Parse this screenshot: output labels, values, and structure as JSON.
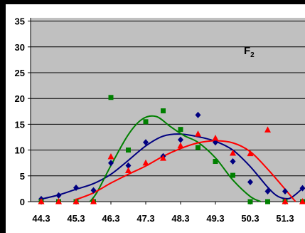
{
  "chart_data": {
    "type": "scatter",
    "title": "F",
    "title_subscript": "2",
    "xlabel": "",
    "ylabel": "",
    "xlim": [
      44.3,
      51.8
    ],
    "ylim": [
      0,
      35
    ],
    "x_ticks": [
      "44.3",
      "45.3",
      "46.3",
      "47.3",
      "48.3",
      "49.3",
      "50.3",
      "51.3"
    ],
    "y_ticks": [
      "0",
      "5",
      "10",
      "15",
      "20",
      "25",
      "30",
      "35"
    ],
    "grid": true,
    "legend": "none",
    "series": [
      {
        "color": "#000080",
        "marker": "diamond",
        "points": [
          [
            44.3,
            0.5
          ],
          [
            44.8,
            1.2
          ],
          [
            45.3,
            2.7
          ],
          [
            45.8,
            2.2
          ],
          [
            46.3,
            7.5
          ],
          [
            46.8,
            7.0
          ],
          [
            47.3,
            11.5
          ],
          [
            47.8,
            8.8
          ],
          [
            48.3,
            12.0
          ],
          [
            48.8,
            16.8
          ],
          [
            49.3,
            11.5
          ],
          [
            49.8,
            7.8
          ],
          [
            50.3,
            3.8
          ],
          [
            50.8,
            2.0
          ],
          [
            51.3,
            2.0
          ],
          [
            51.8,
            2.6
          ]
        ],
        "curve": [
          [
            44.3,
            0.5
          ],
          [
            44.8,
            1.3
          ],
          [
            45.3,
            2.4
          ],
          [
            45.8,
            3.5
          ],
          [
            46.3,
            5.3
          ],
          [
            46.8,
            8.0
          ],
          [
            47.3,
            10.8
          ],
          [
            47.8,
            12.7
          ],
          [
            48.3,
            13.1
          ],
          [
            48.8,
            12.6
          ],
          [
            49.3,
            11.7
          ],
          [
            49.8,
            10.0
          ],
          [
            50.3,
            6.8
          ],
          [
            50.8,
            2.8
          ],
          [
            51.1,
            1.0
          ],
          [
            51.4,
            0.6
          ],
          [
            51.6,
            1.4
          ],
          [
            51.8,
            2.6
          ]
        ]
      },
      {
        "color": "#008000",
        "marker": "square",
        "points": [
          [
            44.3,
            0
          ],
          [
            44.8,
            0
          ],
          [
            45.3,
            0
          ],
          [
            45.8,
            0
          ],
          [
            46.3,
            20.2
          ],
          [
            46.8,
            10.0
          ],
          [
            47.3,
            15.5
          ],
          [
            47.8,
            17.6
          ],
          [
            48.3,
            14.0
          ],
          [
            48.8,
            10.5
          ],
          [
            49.3,
            7.8
          ],
          [
            49.8,
            5.1
          ],
          [
            50.3,
            0
          ],
          [
            50.8,
            0
          ],
          [
            51.3,
            0
          ],
          [
            51.8,
            0
          ]
        ],
        "curve": [
          [
            45.7,
            0
          ],
          [
            45.9,
            1.8
          ],
          [
            46.3,
            7.0
          ],
          [
            46.8,
            13.0
          ],
          [
            47.2,
            16.0
          ],
          [
            47.6,
            16.5
          ],
          [
            48.0,
            14.6
          ],
          [
            48.4,
            12.8
          ],
          [
            48.8,
            11.5
          ],
          [
            49.3,
            8.5
          ],
          [
            49.8,
            4.2
          ],
          [
            50.3,
            1.0
          ],
          [
            50.6,
            0
          ]
        ]
      },
      {
        "color": "#ff0000",
        "marker": "triangle",
        "points": [
          [
            44.3,
            0
          ],
          [
            44.8,
            0
          ],
          [
            45.3,
            0
          ],
          [
            45.8,
            0
          ],
          [
            46.3,
            8.7
          ],
          [
            46.8,
            6.0
          ],
          [
            47.3,
            7.5
          ],
          [
            47.8,
            8.4
          ],
          [
            48.3,
            10.8
          ],
          [
            48.8,
            13.1
          ],
          [
            49.3,
            12.3
          ],
          [
            49.8,
            9.4
          ],
          [
            50.3,
            9.3
          ],
          [
            50.8,
            13.9
          ],
          [
            51.3,
            0
          ],
          [
            51.8,
            0
          ]
        ],
        "curve": [
          [
            45.3,
            0.4
          ],
          [
            45.8,
            1.7
          ],
          [
            46.3,
            3.6
          ],
          [
            46.8,
            5.3
          ],
          [
            47.3,
            6.9
          ],
          [
            47.8,
            8.8
          ],
          [
            48.3,
            10.3
          ],
          [
            48.8,
            11.4
          ],
          [
            49.3,
            11.8
          ],
          [
            49.8,
            11.4
          ],
          [
            50.3,
            9.7
          ],
          [
            50.8,
            6.3
          ],
          [
            51.3,
            2.4
          ],
          [
            51.6,
            0
          ]
        ]
      }
    ]
  }
}
